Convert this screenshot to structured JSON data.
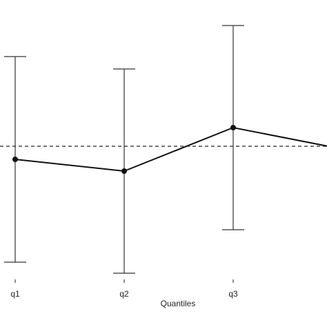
{
  "chart_data": {
    "type": "line",
    "x_label": "Quantiles",
    "categories": [
      "q1",
      "q2",
      "q3",
      null
    ],
    "values": [
      -0.19,
      -0.36,
      0.27,
      -0.04
    ],
    "error": [
      1.49,
      1.48,
      1.48,
      null
    ],
    "color": "#111111",
    "hline": 0,
    "ylim": [
      -1.93,
      2.12
    ]
  }
}
